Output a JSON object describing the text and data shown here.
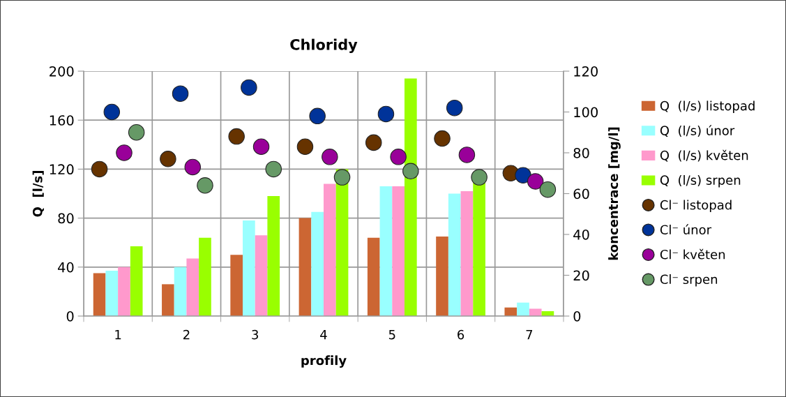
{
  "chart_data": {
    "type": "bar",
    "title": "Chloridy",
    "xlabel": "profily",
    "ylabel": "Q  [l/s]",
    "y2label": "koncentrace [mg/l]",
    "categories": [
      "1",
      "2",
      "3",
      "4",
      "5",
      "6",
      "7"
    ],
    "series": [
      {
        "name": "Q  (l/s) listopad",
        "color": "#cc6633",
        "values": [
          35,
          26,
          50,
          80,
          64,
          65,
          7
        ]
      },
      {
        "name": "Q  (l/s) únor",
        "color": "#99ffff",
        "values": [
          37,
          40,
          78,
          85,
          106,
          100,
          11
        ]
      },
      {
        "name": "Q  (l/s) květen",
        "color": "#ff99cc",
        "values": [
          40,
          47,
          66,
          108,
          106,
          102,
          6
        ]
      },
      {
        "name": "Q  (l/s) srpen",
        "color": "#99ff00",
        "values": [
          57,
          64,
          98,
          120,
          194,
          118,
          4
        ]
      },
      {
        "name": "Cl⁻ listopad",
        "type": "scatter",
        "axis": "y2",
        "color": "#663300",
        "values": [
          72,
          77,
          88,
          83,
          85,
          87,
          70
        ]
      },
      {
        "name": "Cl⁻ únor",
        "type": "scatter",
        "axis": "y2",
        "color": "#003399",
        "values": [
          100,
          109,
          112,
          98,
          99,
          102,
          69
        ]
      },
      {
        "name": "Cl⁻ květen",
        "type": "scatter",
        "axis": "y2",
        "color": "#990099",
        "values": [
          80,
          73,
          83,
          78,
          78,
          79,
          66
        ]
      },
      {
        "name": "Cl⁻ srpen",
        "type": "scatter",
        "axis": "y2",
        "color": "#669966",
        "values": [
          90,
          64,
          72,
          68,
          71,
          68,
          62
        ]
      }
    ],
    "ylim": [
      0,
      200
    ],
    "yticks": [
      0,
      40,
      80,
      120,
      160,
      200
    ],
    "y2lim": [
      0,
      120
    ],
    "y2ticks": [
      0,
      20,
      40,
      60,
      80,
      100,
      120
    ],
    "grid": true,
    "legend": "right",
    "marker": "circle"
  }
}
